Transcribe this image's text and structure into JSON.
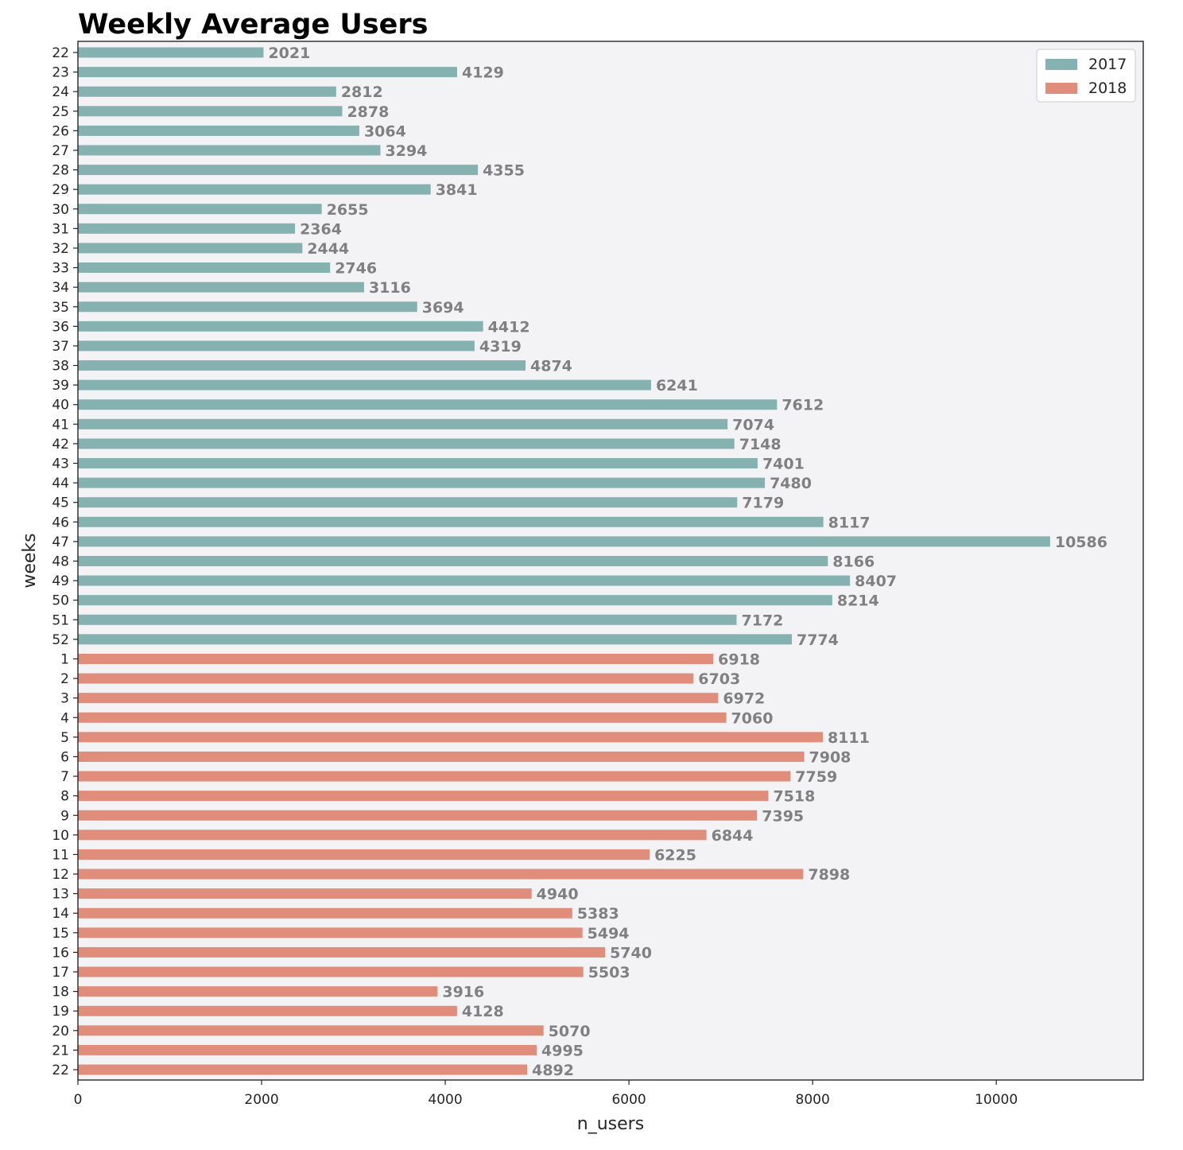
{
  "chart_data": {
    "type": "bar",
    "orientation": "horizontal",
    "title": "Weekly Average Users",
    "xlabel": "n_users",
    "ylabel": "weeks",
    "xlim": [
      0,
      11600
    ],
    "xticks": [
      0,
      2000,
      4000,
      6000,
      8000,
      10000
    ],
    "grid": false,
    "legend_position": "top-right",
    "background_color": "#f3f3f6",
    "series": [
      {
        "name": "2017",
        "color": "#86b1b1",
        "categories": [
          "22",
          "23",
          "24",
          "25",
          "26",
          "27",
          "28",
          "29",
          "30",
          "31",
          "32",
          "33",
          "34",
          "35",
          "36",
          "37",
          "38",
          "39",
          "40",
          "41",
          "42",
          "43",
          "44",
          "45",
          "46",
          "47",
          "48",
          "49",
          "50",
          "51",
          "52"
        ],
        "values": [
          2021,
          4129,
          2812,
          2878,
          3064,
          3294,
          4355,
          3841,
          2655,
          2364,
          2444,
          2746,
          3116,
          3694,
          4412,
          4319,
          4874,
          6241,
          7612,
          7074,
          7148,
          7401,
          7480,
          7179,
          8117,
          10586,
          8166,
          8407,
          8214,
          7172,
          7774
        ]
      },
      {
        "name": "2018",
        "color": "#e08d7c",
        "categories": [
          "1",
          "2",
          "3",
          "4",
          "5",
          "6",
          "7",
          "8",
          "9",
          "10",
          "11",
          "12",
          "13",
          "14",
          "15",
          "16",
          "17",
          "18",
          "19",
          "20",
          "21",
          "22"
        ],
        "values": [
          6918,
          6703,
          6972,
          7060,
          8111,
          7908,
          7759,
          7518,
          7395,
          6844,
          6225,
          7898,
          4940,
          5383,
          5494,
          5740,
          5503,
          3916,
          4128,
          5070,
          4995,
          4892
        ]
      }
    ]
  }
}
